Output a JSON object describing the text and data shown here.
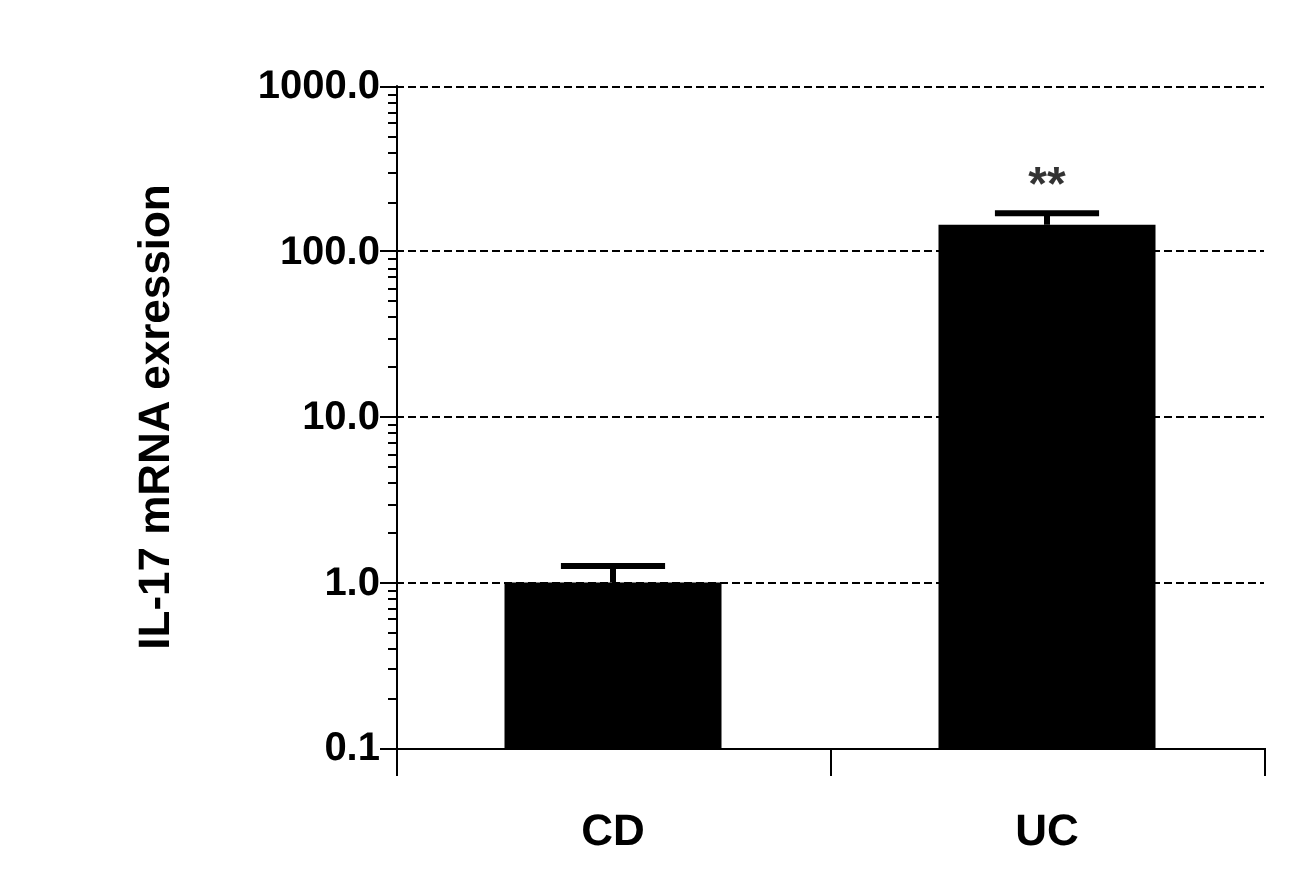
{
  "chart_data": {
    "type": "bar",
    "ylabel": "IL-17 mRNA exression",
    "categories": [
      "CD",
      "UC"
    ],
    "series": [
      {
        "color": "#000000",
        "values": [
          1.0,
          145
        ],
        "errors": [
          [
            1.0,
            1.26
          ],
          [
            145,
            170
          ]
        ]
      }
    ],
    "log": true,
    "ylim": [
      0.1,
      1000
    ],
    "yticks": [
      {
        "value": 0.1,
        "label": "0.1"
      },
      {
        "value": 1,
        "label": "1.0"
      },
      {
        "value": 10,
        "label": "10.0"
      },
      {
        "value": 100,
        "label": "100.0"
      },
      {
        "value": 1000,
        "label": "1000.0"
      }
    ],
    "grid": "y",
    "line_style": "dashed",
    "annotations": [
      {
        "text": "**",
        "x": "UC",
        "y": 170
      }
    ]
  }
}
